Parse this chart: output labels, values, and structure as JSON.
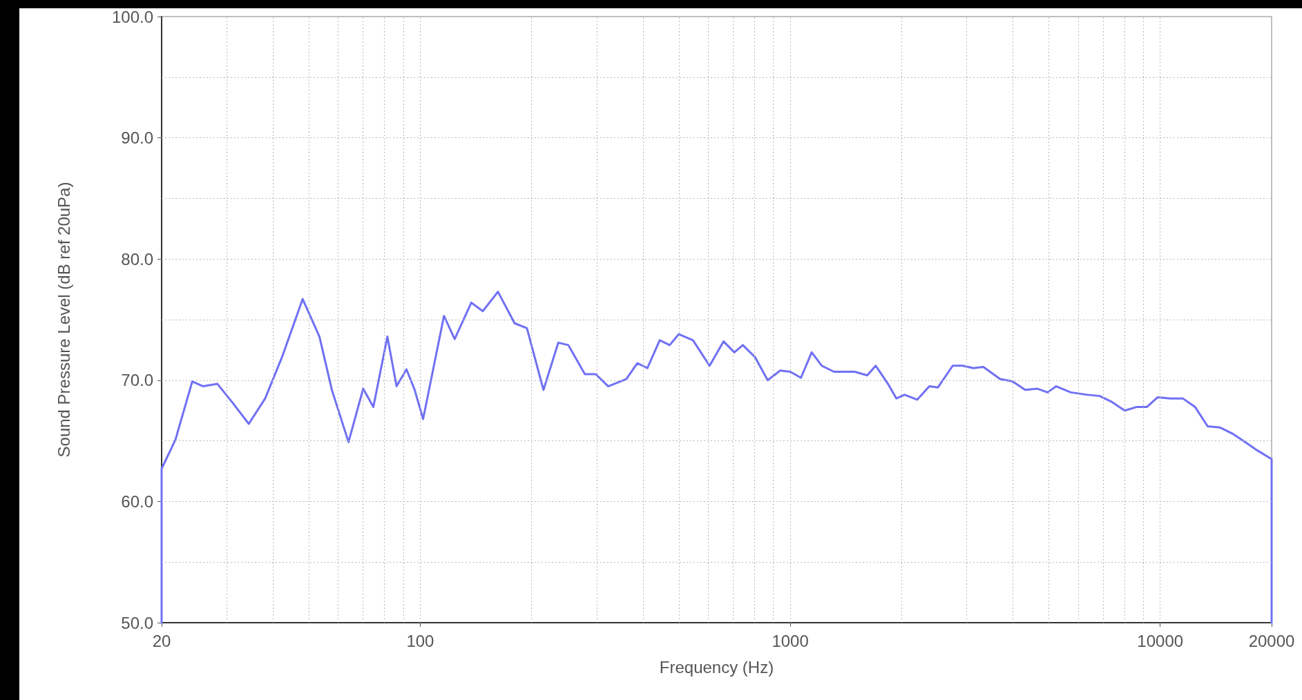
{
  "chart_data": {
    "type": "line",
    "xlabel": "Frequency (Hz)",
    "ylabel": "Sound Pressure Level (dB ref 20uPa)",
    "log": "x",
    "grid": true,
    "marker": "none",
    "line_style": "solid",
    "xlim": [
      20,
      20000
    ],
    "xticks": [
      20,
      {
        "value": 30,
        "label": null
      },
      {
        "value": 40,
        "label": null
      },
      {
        "value": 50,
        "label": null
      },
      {
        "value": 60,
        "label": null
      },
      {
        "value": 70,
        "label": null
      },
      {
        "value": 80,
        "label": null
      },
      {
        "value": 90,
        "label": null
      },
      100,
      {
        "value": 200,
        "label": null
      },
      {
        "value": 300,
        "label": null
      },
      {
        "value": 400,
        "label": null
      },
      {
        "value": 500,
        "label": null
      },
      {
        "value": 600,
        "label": null
      },
      {
        "value": 700,
        "label": null
      },
      {
        "value": 800,
        "label": null
      },
      {
        "value": 900,
        "label": null
      },
      1000,
      {
        "value": 2000,
        "label": null
      },
      {
        "value": 3000,
        "label": null
      },
      {
        "value": 4000,
        "label": null
      },
      {
        "value": 5000,
        "label": null
      },
      {
        "value": 6000,
        "label": null
      },
      {
        "value": 7000,
        "label": null
      },
      {
        "value": 8000,
        "label": null
      },
      {
        "value": 9000,
        "label": null
      },
      10000,
      20000
    ],
    "ylim": [
      50,
      100
    ],
    "yticks": [
      {
        "value": 50,
        "label": "50.0"
      },
      {
        "value": 55,
        "label": null
      },
      {
        "value": 60,
        "label": "60.0"
      },
      {
        "value": 65,
        "label": null
      },
      {
        "value": 70,
        "label": "70.0"
      },
      {
        "value": 75,
        "label": null
      },
      {
        "value": 80,
        "label": "80.0"
      },
      {
        "value": 85,
        "label": null
      },
      {
        "value": 90,
        "label": "90.0"
      },
      {
        "value": 95,
        "label": null
      },
      {
        "value": 100,
        "label": "100.0"
      }
    ],
    "series": [
      {
        "color": "#7070f4",
        "x": [
          20,
          20,
          21.8,
          24.2,
          25.9,
          28.3,
          31,
          34.4,
          38.1,
          42.3,
          48.1,
          53.4,
          57.7,
          64,
          70.1,
          74.7,
          81.5,
          86.3,
          91.8,
          96.6,
          101.8,
          115.9,
          123.9,
          137.4,
          147.6,
          162.2,
          179.9,
          194.2,
          215.3,
          236.1,
          251.3,
          278.6,
          298,
          322.2,
          360.5,
          386.2,
          411.1,
          443.8,
          472.2,
          500,
          545.8,
          605.4,
          660.5,
          706.3,
          744.5,
          803.7,
          869,
          939.6,
          1000,
          1069,
          1143,
          1216,
          1313,
          1494,
          1615,
          1702,
          1837,
          1936,
          2037,
          2203,
          2377,
          2506,
          2749,
          2924,
          3126,
          3326,
          3690,
          3990,
          4315,
          4660,
          4958,
          5234,
          5733,
          6355,
          6860,
          7413,
          8016,
          8654,
          9208,
          9845,
          10640,
          11510,
          12420,
          13430,
          14520,
          15670,
          16950,
          18320,
          20000,
          20000
        ],
        "values": [
          50,
          62.7,
          65.1,
          69.9,
          69.5,
          69.7,
          68.2,
          66.4,
          68.5,
          71.9,
          76.7,
          73.6,
          69.2,
          64.9,
          69.3,
          67.8,
          73.6,
          69.5,
          70.9,
          69.2,
          66.8,
          75.3,
          73.4,
          76.4,
          75.7,
          77.3,
          74.7,
          74.3,
          69.2,
          73.1,
          72.9,
          70.5,
          70.5,
          69.5,
          70.1,
          71.4,
          71,
          73.3,
          72.9,
          73.8,
          73.3,
          71.2,
          73.2,
          72.3,
          72.9,
          71.9,
          70,
          70.8,
          70.7,
          70.2,
          72.3,
          71.2,
          70.7,
          70.7,
          70.4,
          71.2,
          69.7,
          68.5,
          68.8,
          68.4,
          69.5,
          69.4,
          71.2,
          71.2,
          71,
          71.1,
          70.1,
          69.9,
          69.2,
          69.3,
          69,
          69.5,
          69,
          68.8,
          68.7,
          68.2,
          67.5,
          67.8,
          67.8,
          68.6,
          68.5,
          68.5,
          67.8,
          66.2,
          66.1,
          65.6,
          64.9,
          64.2,
          63.5,
          50
        ]
      }
    ]
  }
}
